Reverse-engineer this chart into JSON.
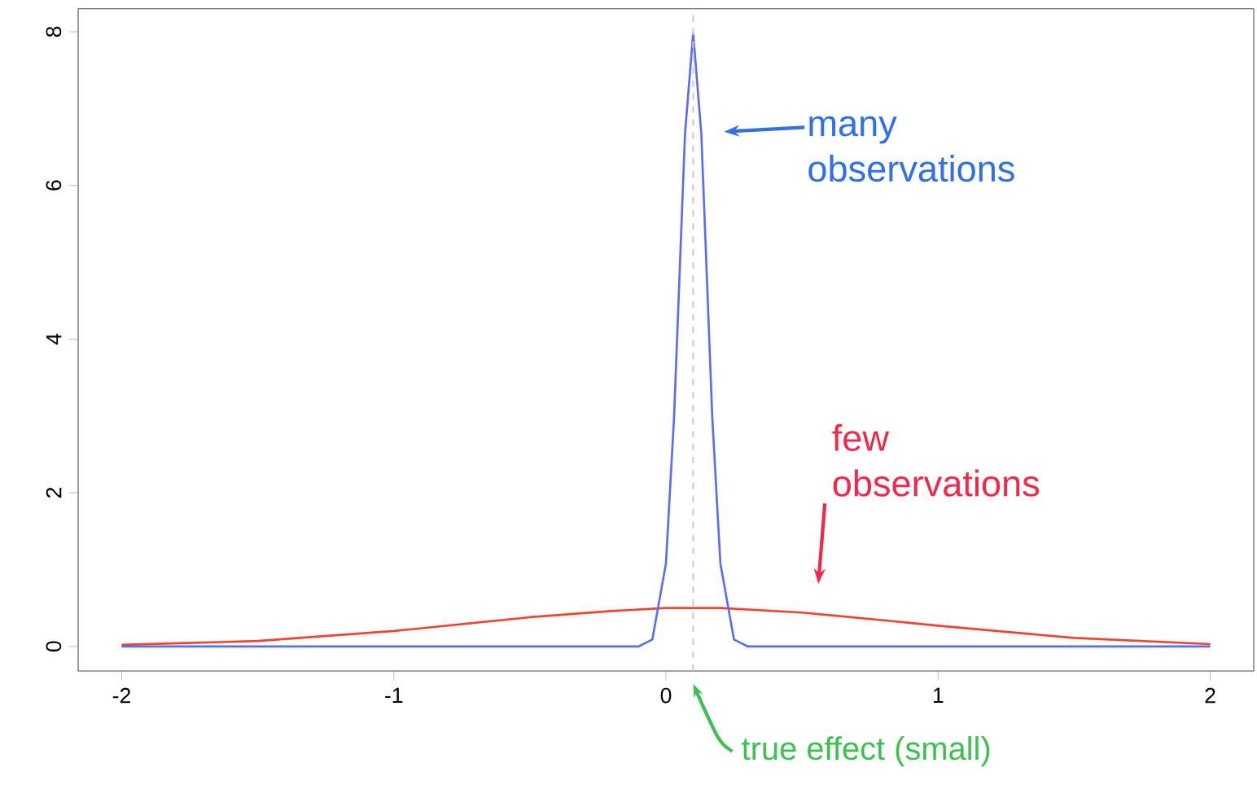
{
  "chart_data": {
    "type": "line",
    "xlim": [
      -2.16,
      2.16
    ],
    "ylim": [
      -0.32,
      8.3
    ],
    "xticks": [
      -2,
      -1,
      0,
      1,
      2
    ],
    "yticks": [
      0,
      2,
      4,
      6,
      8
    ],
    "grid": false,
    "marker": "none",
    "line_style": "solid",
    "series": [
      {
        "color": "#f5412d",
        "x": [
          -2,
          -1.5,
          -1,
          -0.5,
          -0.2,
          0,
          0.1,
          0.2,
          0.5,
          0.8,
          1,
          1.5,
          2
        ],
        "values": [
          0.02,
          0.07,
          0.2,
          0.38,
          0.46,
          0.5,
          0.5,
          0.5,
          0.44,
          0.34,
          0.27,
          0.11,
          0.03
        ]
      },
      {
        "color": "#5b6cf5",
        "x": [
          -2,
          -0.1,
          -0.05,
          0,
          0.03,
          0.05,
          0.07,
          0.1,
          0.13,
          0.15,
          0.17,
          0.2,
          0.25,
          0.3,
          2
        ],
        "values": [
          0,
          0,
          0.09,
          1.08,
          3.0,
          4.84,
          6.67,
          7.98,
          6.67,
          4.84,
          3.0,
          1.08,
          0.09,
          0,
          0
        ]
      }
    ],
    "ref_lines": [
      {
        "axis": "x",
        "value": 0.1,
        "label": "true effect (small)",
        "color": "#cccccc",
        "line_style": "dashed"
      }
    ],
    "annotations": [
      "many observations",
      "few observations"
    ]
  }
}
